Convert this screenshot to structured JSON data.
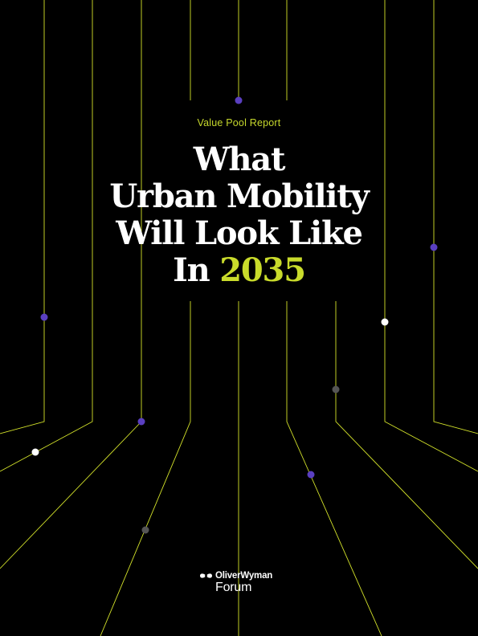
{
  "report": {
    "subtitle": "Value Pool Report",
    "title_lines": [
      "What",
      "Urban Mobility",
      "Will Look Like",
      "In"
    ],
    "title_year": "2035"
  },
  "brand": {
    "name": "OliverWyman",
    "sub": "Forum",
    "logo_icon": "oliver-wyman-logo-icon"
  },
  "colors": {
    "background": "#000000",
    "accent": "#c9db2b",
    "line": "#d4e32a",
    "dot_purple": "#5a3fc0",
    "dot_white": "#ffffff",
    "dot_gray": "#555555",
    "text": "#ffffff"
  }
}
